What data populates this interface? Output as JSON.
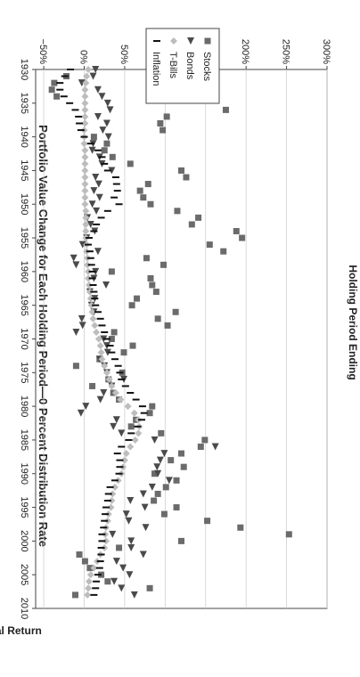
{
  "chart_data": {
    "type": "scatter",
    "title": "Portfolio Value Change for Each Holding Period—0 Percent Distribution Rate",
    "xlabel": "Holding Period Ending",
    "ylabel": "Total Return",
    "xlim": [
      1930,
      2010
    ],
    "ylim": [
      -60,
      300
    ],
    "x_ticks": [
      1930,
      1935,
      1940,
      1945,
      1950,
      1955,
      1960,
      1965,
      1970,
      1975,
      1980,
      1985,
      1990,
      1995,
      2000,
      2005,
      2010
    ],
    "y_ticks": [
      -50,
      0,
      50,
      100,
      150,
      200,
      250,
      300
    ],
    "y_tick_labels": [
      "−50%",
      "0%",
      "50%",
      "100%",
      "150%",
      "200%",
      "250%",
      "300%"
    ],
    "grid": "horizontal",
    "legend_position": "top-right",
    "rotated": "90deg-clockwise",
    "colors": {
      "stocks": "#6b6b6b",
      "bonds": "#4a4a4a",
      "tbills": "#bdbdbd",
      "inflation": "#111111"
    },
    "series": [
      {
        "name": "Stocks",
        "marker": "square",
        "points": [
          [
            1931,
            -22
          ],
          [
            1932,
            -37
          ],
          [
            1933,
            -40
          ],
          [
            1934,
            -34
          ],
          [
            1936,
            175
          ],
          [
            1937,
            102
          ],
          [
            1938,
            94
          ],
          [
            1939,
            97
          ],
          [
            1940,
            12
          ],
          [
            1941,
            28
          ],
          [
            1942,
            25
          ],
          [
            1943,
            35
          ],
          [
            1944,
            57
          ],
          [
            1945,
            120
          ],
          [
            1946,
            126
          ],
          [
            1947,
            79
          ],
          [
            1948,
            69
          ],
          [
            1949,
            73
          ],
          [
            1950,
            82
          ],
          [
            1951,
            115
          ],
          [
            1952,
            141
          ],
          [
            1953,
            133
          ],
          [
            1954,
            188
          ],
          [
            1955,
            195
          ],
          [
            1956,
            155
          ],
          [
            1957,
            172
          ],
          [
            1958,
            77
          ],
          [
            1959,
            98
          ],
          [
            1960,
            34
          ],
          [
            1961,
            82
          ],
          [
            1962,
            84
          ],
          [
            1963,
            89
          ],
          [
            1964,
            65
          ],
          [
            1965,
            59
          ],
          [
            1966,
            113
          ],
          [
            1967,
            91
          ],
          [
            1968,
            103
          ],
          [
            1969,
            37
          ],
          [
            1970,
            34
          ],
          [
            1971,
            60
          ],
          [
            1972,
            49
          ],
          [
            1973,
            19
          ],
          [
            1974,
            -10
          ],
          [
            1975,
            47
          ],
          [
            1976,
            30
          ],
          [
            1977,
            10
          ],
          [
            1978,
            36
          ],
          [
            1979,
            43
          ],
          [
            1980,
            84
          ],
          [
            1981,
            81
          ],
          [
            1982,
            64
          ],
          [
            1983,
            58
          ],
          [
            1984,
            95
          ],
          [
            1985,
            149
          ],
          [
            1986,
            144
          ],
          [
            1987,
            120
          ],
          [
            1988,
            107
          ],
          [
            1989,
            123
          ],
          [
            1990,
            87
          ],
          [
            1991,
            114
          ],
          [
            1992,
            101
          ],
          [
            1993,
            91
          ],
          [
            1994,
            86
          ],
          [
            1995,
            114
          ],
          [
            1996,
            99
          ],
          [
            1997,
            152
          ],
          [
            1998,
            193
          ],
          [
            1999,
            253
          ],
          [
            2000,
            120
          ],
          [
            2001,
            43
          ],
          [
            2002,
            -6
          ],
          [
            2003,
            1
          ],
          [
            2004,
            7
          ],
          [
            2005,
            21
          ],
          [
            2006,
            29
          ],
          [
            2007,
            81
          ],
          [
            2008,
            -11
          ]
        ]
      },
      {
        "name": "Bonds",
        "marker": "triangle",
        "points": [
          [
            1930,
            14
          ],
          [
            1931,
            11
          ],
          [
            1932,
            -3
          ],
          [
            1933,
            17
          ],
          [
            1934,
            22
          ],
          [
            1935,
            29
          ],
          [
            1936,
            32
          ],
          [
            1937,
            17
          ],
          [
            1938,
            28
          ],
          [
            1939,
            23
          ],
          [
            1940,
            30
          ],
          [
            1941,
            11
          ],
          [
            1942,
            10
          ],
          [
            1943,
            19
          ],
          [
            1944,
            22
          ],
          [
            1945,
            34
          ],
          [
            1946,
            14
          ],
          [
            1947,
            18
          ],
          [
            1948,
            12
          ],
          [
            1949,
            19
          ],
          [
            1950,
            10
          ],
          [
            1951,
            15
          ],
          [
            1952,
            4
          ],
          [
            1953,
            8
          ],
          [
            1954,
            13
          ],
          [
            1955,
            3
          ],
          [
            1956,
            -2
          ],
          [
            1957,
            17
          ],
          [
            1958,
            -13
          ],
          [
            1959,
            -10
          ],
          [
            1960,
            14
          ],
          [
            1961,
            12
          ],
          [
            1962,
            27
          ],
          [
            1963,
            7
          ],
          [
            1964,
            13
          ],
          [
            1965,
            9
          ],
          [
            1966,
            12
          ],
          [
            1967,
            -3
          ],
          [
            1968,
            -2
          ],
          [
            1969,
            -10
          ],
          [
            1970,
            24
          ],
          [
            1971,
            28
          ],
          [
            1972,
            29
          ],
          [
            1973,
            19
          ],
          [
            1974,
            25
          ],
          [
            1975,
            28
          ],
          [
            1976,
            49
          ],
          [
            1977,
            34
          ],
          [
            1978,
            24
          ],
          [
            1979,
            20
          ],
          [
            1980,
            2
          ],
          [
            1981,
            -4
          ],
          [
            1982,
            40
          ],
          [
            1983,
            36
          ],
          [
            1984,
            46
          ],
          [
            1985,
            87
          ],
          [
            1986,
            162
          ],
          [
            1987,
            99
          ],
          [
            1988,
            94
          ],
          [
            1989,
            90
          ],
          [
            1990,
            91
          ],
          [
            1991,
            105
          ],
          [
            1992,
            84
          ],
          [
            1993,
            73
          ],
          [
            1994,
            57
          ],
          [
            1995,
            75
          ],
          [
            1996,
            52
          ],
          [
            1997,
            55
          ],
          [
            1998,
            76
          ],
          [
            1999,
            35
          ],
          [
            2000,
            58
          ],
          [
            2001,
            58
          ],
          [
            2002,
            73
          ],
          [
            2003,
            40
          ],
          [
            2004,
            48
          ],
          [
            2005,
            56
          ],
          [
            2006,
            37
          ],
          [
            2007,
            46
          ],
          [
            2008,
            62
          ]
        ]
      },
      {
        "name": "T-Bills",
        "marker": "diamond",
        "points": [
          [
            1930,
            5
          ],
          [
            1931,
            3
          ],
          [
            1932,
            2
          ],
          [
            1933,
            1
          ],
          [
            1934,
            1
          ],
          [
            1935,
            1
          ],
          [
            1936,
            1
          ],
          [
            1937,
            1
          ],
          [
            1938,
            1
          ],
          [
            1939,
            0
          ],
          [
            1940,
            0
          ],
          [
            1941,
            0
          ],
          [
            1942,
            1
          ],
          [
            1943,
            1
          ],
          [
            1944,
            1
          ],
          [
            1945,
            1
          ],
          [
            1946,
            1
          ],
          [
            1947,
            1
          ],
          [
            1948,
            1
          ],
          [
            1949,
            1
          ],
          [
            1950,
            1
          ],
          [
            1951,
            2
          ],
          [
            1952,
            2
          ],
          [
            1953,
            2
          ],
          [
            1954,
            2
          ],
          [
            1955,
            2
          ],
          [
            1956,
            3
          ],
          [
            1957,
            3
          ],
          [
            1958,
            4
          ],
          [
            1959,
            4
          ],
          [
            1960,
            5
          ],
          [
            1961,
            5
          ],
          [
            1962,
            6
          ],
          [
            1963,
            7
          ],
          [
            1964,
            8
          ],
          [
            1965,
            9
          ],
          [
            1966,
            10
          ],
          [
            1967,
            11
          ],
          [
            1968,
            13
          ],
          [
            1969,
            15
          ],
          [
            1970,
            18
          ],
          [
            1971,
            20
          ],
          [
            1972,
            21
          ],
          [
            1973,
            22
          ],
          [
            1974,
            25
          ],
          [
            1975,
            28
          ],
          [
            1976,
            31
          ],
          [
            1977,
            34
          ],
          [
            1978,
            39
          ],
          [
            1979,
            45
          ],
          [
            1980,
            54
          ],
          [
            1981,
            62
          ],
          [
            1982,
            67
          ],
          [
            1983,
            68
          ],
          [
            1984,
            67
          ],
          [
            1985,
            63
          ],
          [
            1986,
            57
          ],
          [
            1987,
            52
          ],
          [
            1988,
            50
          ],
          [
            1989,
            48
          ],
          [
            1990,
            46
          ],
          [
            1991,
            42
          ],
          [
            1992,
            38
          ],
          [
            1993,
            35
          ],
          [
            1994,
            34
          ],
          [
            1995,
            33
          ],
          [
            1996,
            30
          ],
          [
            1997,
            29
          ],
          [
            1998,
            27
          ],
          [
            1999,
            26
          ],
          [
            2000,
            27
          ],
          [
            2001,
            25
          ],
          [
            2002,
            20
          ],
          [
            2003,
            16
          ],
          [
            2004,
            12
          ],
          [
            2005,
            8
          ],
          [
            2006,
            6
          ],
          [
            2007,
            5
          ],
          [
            2008,
            4
          ]
        ]
      },
      {
        "name": "Inflation",
        "marker": "dash",
        "points": [
          [
            1930,
            -17
          ],
          [
            1931,
            -24
          ],
          [
            1932,
            -30
          ],
          [
            1933,
            -30
          ],
          [
            1934,
            -25
          ],
          [
            1935,
            -18
          ],
          [
            1936,
            -11
          ],
          [
            1937,
            -7
          ],
          [
            1938,
            -6
          ],
          [
            1939,
            -4
          ],
          [
            1940,
            0
          ],
          [
            1941,
            8
          ],
          [
            1942,
            17
          ],
          [
            1943,
            22
          ],
          [
            1944,
            25
          ],
          [
            1945,
            29
          ],
          [
            1946,
            39
          ],
          [
            1947,
            40
          ],
          [
            1948,
            41
          ],
          [
            1949,
            37
          ],
          [
            1950,
            43
          ],
          [
            1951,
            29
          ],
          [
            1952,
            21
          ],
          [
            1953,
            15
          ],
          [
            1954,
            12
          ],
          [
            1955,
            6
          ],
          [
            1956,
            5
          ],
          [
            1957,
            7
          ],
          [
            1958,
            8
          ],
          [
            1959,
            9
          ],
          [
            1960,
            10
          ],
          [
            1961,
            10
          ],
          [
            1962,
            11
          ],
          [
            1963,
            12
          ],
          [
            1964,
            13
          ],
          [
            1965,
            14
          ],
          [
            1966,
            17
          ],
          [
            1967,
            20
          ],
          [
            1968,
            22
          ],
          [
            1969,
            25
          ],
          [
            1970,
            28
          ],
          [
            1971,
            32
          ],
          [
            1972,
            34
          ],
          [
            1973,
            38
          ],
          [
            1974,
            42
          ],
          [
            1975,
            44
          ],
          [
            1976,
            46
          ],
          [
            1977,
            51
          ],
          [
            1978,
            57
          ],
          [
            1979,
            64
          ],
          [
            1980,
            72
          ],
          [
            1981,
            74
          ],
          [
            1982,
            71
          ],
          [
            1983,
            66
          ],
          [
            1984,
            58
          ],
          [
            1985,
            55
          ],
          [
            1986,
            46
          ],
          [
            1987,
            41
          ],
          [
            1988,
            44
          ],
          [
            1989,
            44
          ],
          [
            1990,
            43
          ],
          [
            1991,
            38
          ],
          [
            1992,
            32
          ],
          [
            1993,
            30
          ],
          [
            1994,
            29
          ],
          [
            1995,
            27
          ],
          [
            1996,
            26
          ],
          [
            1997,
            25
          ],
          [
            1998,
            24
          ],
          [
            1999,
            22
          ],
          [
            2000,
            22
          ],
          [
            2001,
            21
          ],
          [
            2002,
            21
          ],
          [
            2003,
            20
          ],
          [
            2004,
            19
          ],
          [
            2005,
            17
          ],
          [
            2006,
            15
          ],
          [
            2007,
            14
          ],
          [
            2008,
            12
          ]
        ]
      }
    ]
  }
}
